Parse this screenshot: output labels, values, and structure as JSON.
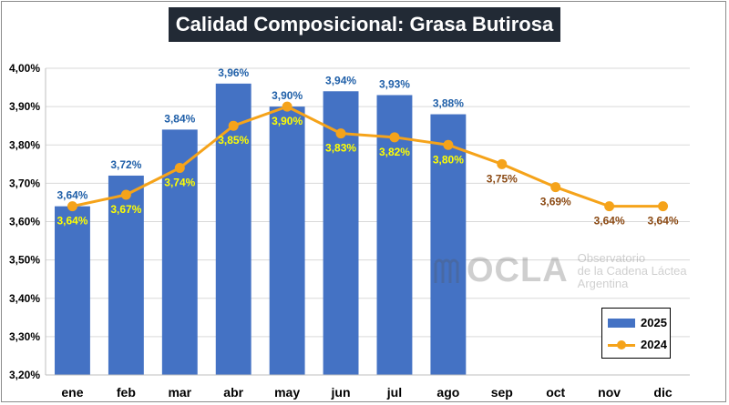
{
  "chart_data": {
    "type": "bar",
    "title": "Calidad Composicional: Grasa Butirosa",
    "categories": [
      "ene",
      "feb",
      "mar",
      "abr",
      "may",
      "jun",
      "jul",
      "ago",
      "sep",
      "oct",
      "nov",
      "dic"
    ],
    "series": [
      {
        "name": "2025",
        "type": "bar",
        "color": "#4472c4",
        "values": [
          3.64,
          3.72,
          3.84,
          3.96,
          3.9,
          3.94,
          3.93,
          3.88,
          null,
          null,
          null,
          null
        ],
        "labels": [
          "3,64%",
          "3,72%",
          "3,84%",
          "3,96%",
          "3,90%",
          "3,94%",
          "3,93%",
          "3,88%",
          "",
          "",
          "",
          ""
        ]
      },
      {
        "name": "2024",
        "type": "line",
        "color": "#f5a31a",
        "values": [
          3.64,
          3.67,
          3.74,
          3.85,
          3.9,
          3.83,
          3.82,
          3.8,
          3.75,
          3.69,
          3.64,
          3.64
        ],
        "labels": [
          "3,64%",
          "3,67%",
          "3,74%",
          "3,85%",
          "3,90%",
          "3,83%",
          "3,82%",
          "3,80%",
          "3,75%",
          "3,69%",
          "3,64%",
          "3,64%"
        ]
      }
    ],
    "ylim": [
      3.2,
      4.0
    ],
    "yticks": [
      3.2,
      3.3,
      3.4,
      3.5,
      3.6,
      3.7,
      3.8,
      3.9,
      4.0
    ],
    "ytick_labels": [
      "3,20%",
      "3,30%",
      "3,40%",
      "3,50%",
      "3,60%",
      "3,70%",
      "3,80%",
      "3,90%",
      "4,00%"
    ],
    "grid": true,
    "legend_position": "bottom-right"
  },
  "legend": {
    "bar_label": "2025",
    "line_label": "2024"
  },
  "watermark": {
    "logo": "OCLA",
    "line1": "Observatorio",
    "line2": "de la Cadena Láctea",
    "line3": "Argentina"
  }
}
